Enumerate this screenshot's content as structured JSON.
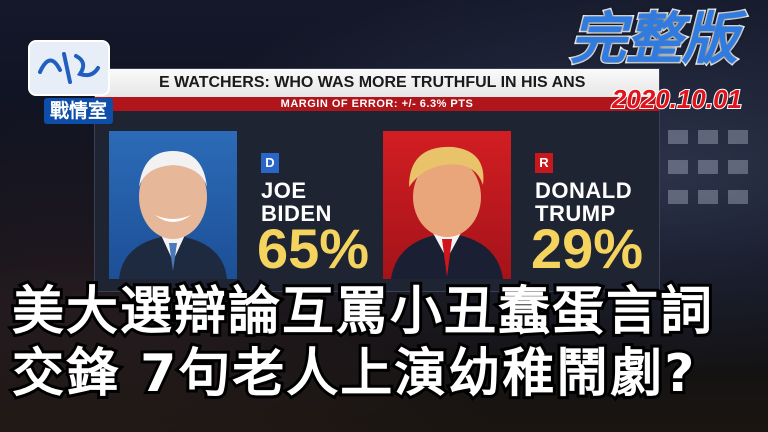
{
  "logo": {
    "program_name": "戰情室"
  },
  "edition_badge": "完整版",
  "date": "2020.10.01",
  "graphic": {
    "banner_title": "E WATCHERS: WHO WAS MORE TRUTHFUL IN HIS ANS",
    "margin_of_error": "MARGIN OF ERROR: +/- 6.3% PTS",
    "candidates": [
      {
        "party": "D",
        "first_name": "JOE",
        "last_name": "BIDEN",
        "percent": "65%",
        "color": "#2966c8"
      },
      {
        "party": "R",
        "first_name": "DONALD",
        "last_name": "TRUMP",
        "percent": "29%",
        "color": "#c8181e"
      }
    ]
  },
  "headline": {
    "line1": "美大選辯論互罵小丑蠢蛋言詞",
    "line2": "交鋒  7句老人上演幼稚鬧劇?"
  },
  "colors": {
    "percent_yellow": "#f4d35e",
    "moe_red": "#b0151b",
    "edition_blue": "#2f7be0",
    "date_red": "#e0141c"
  }
}
